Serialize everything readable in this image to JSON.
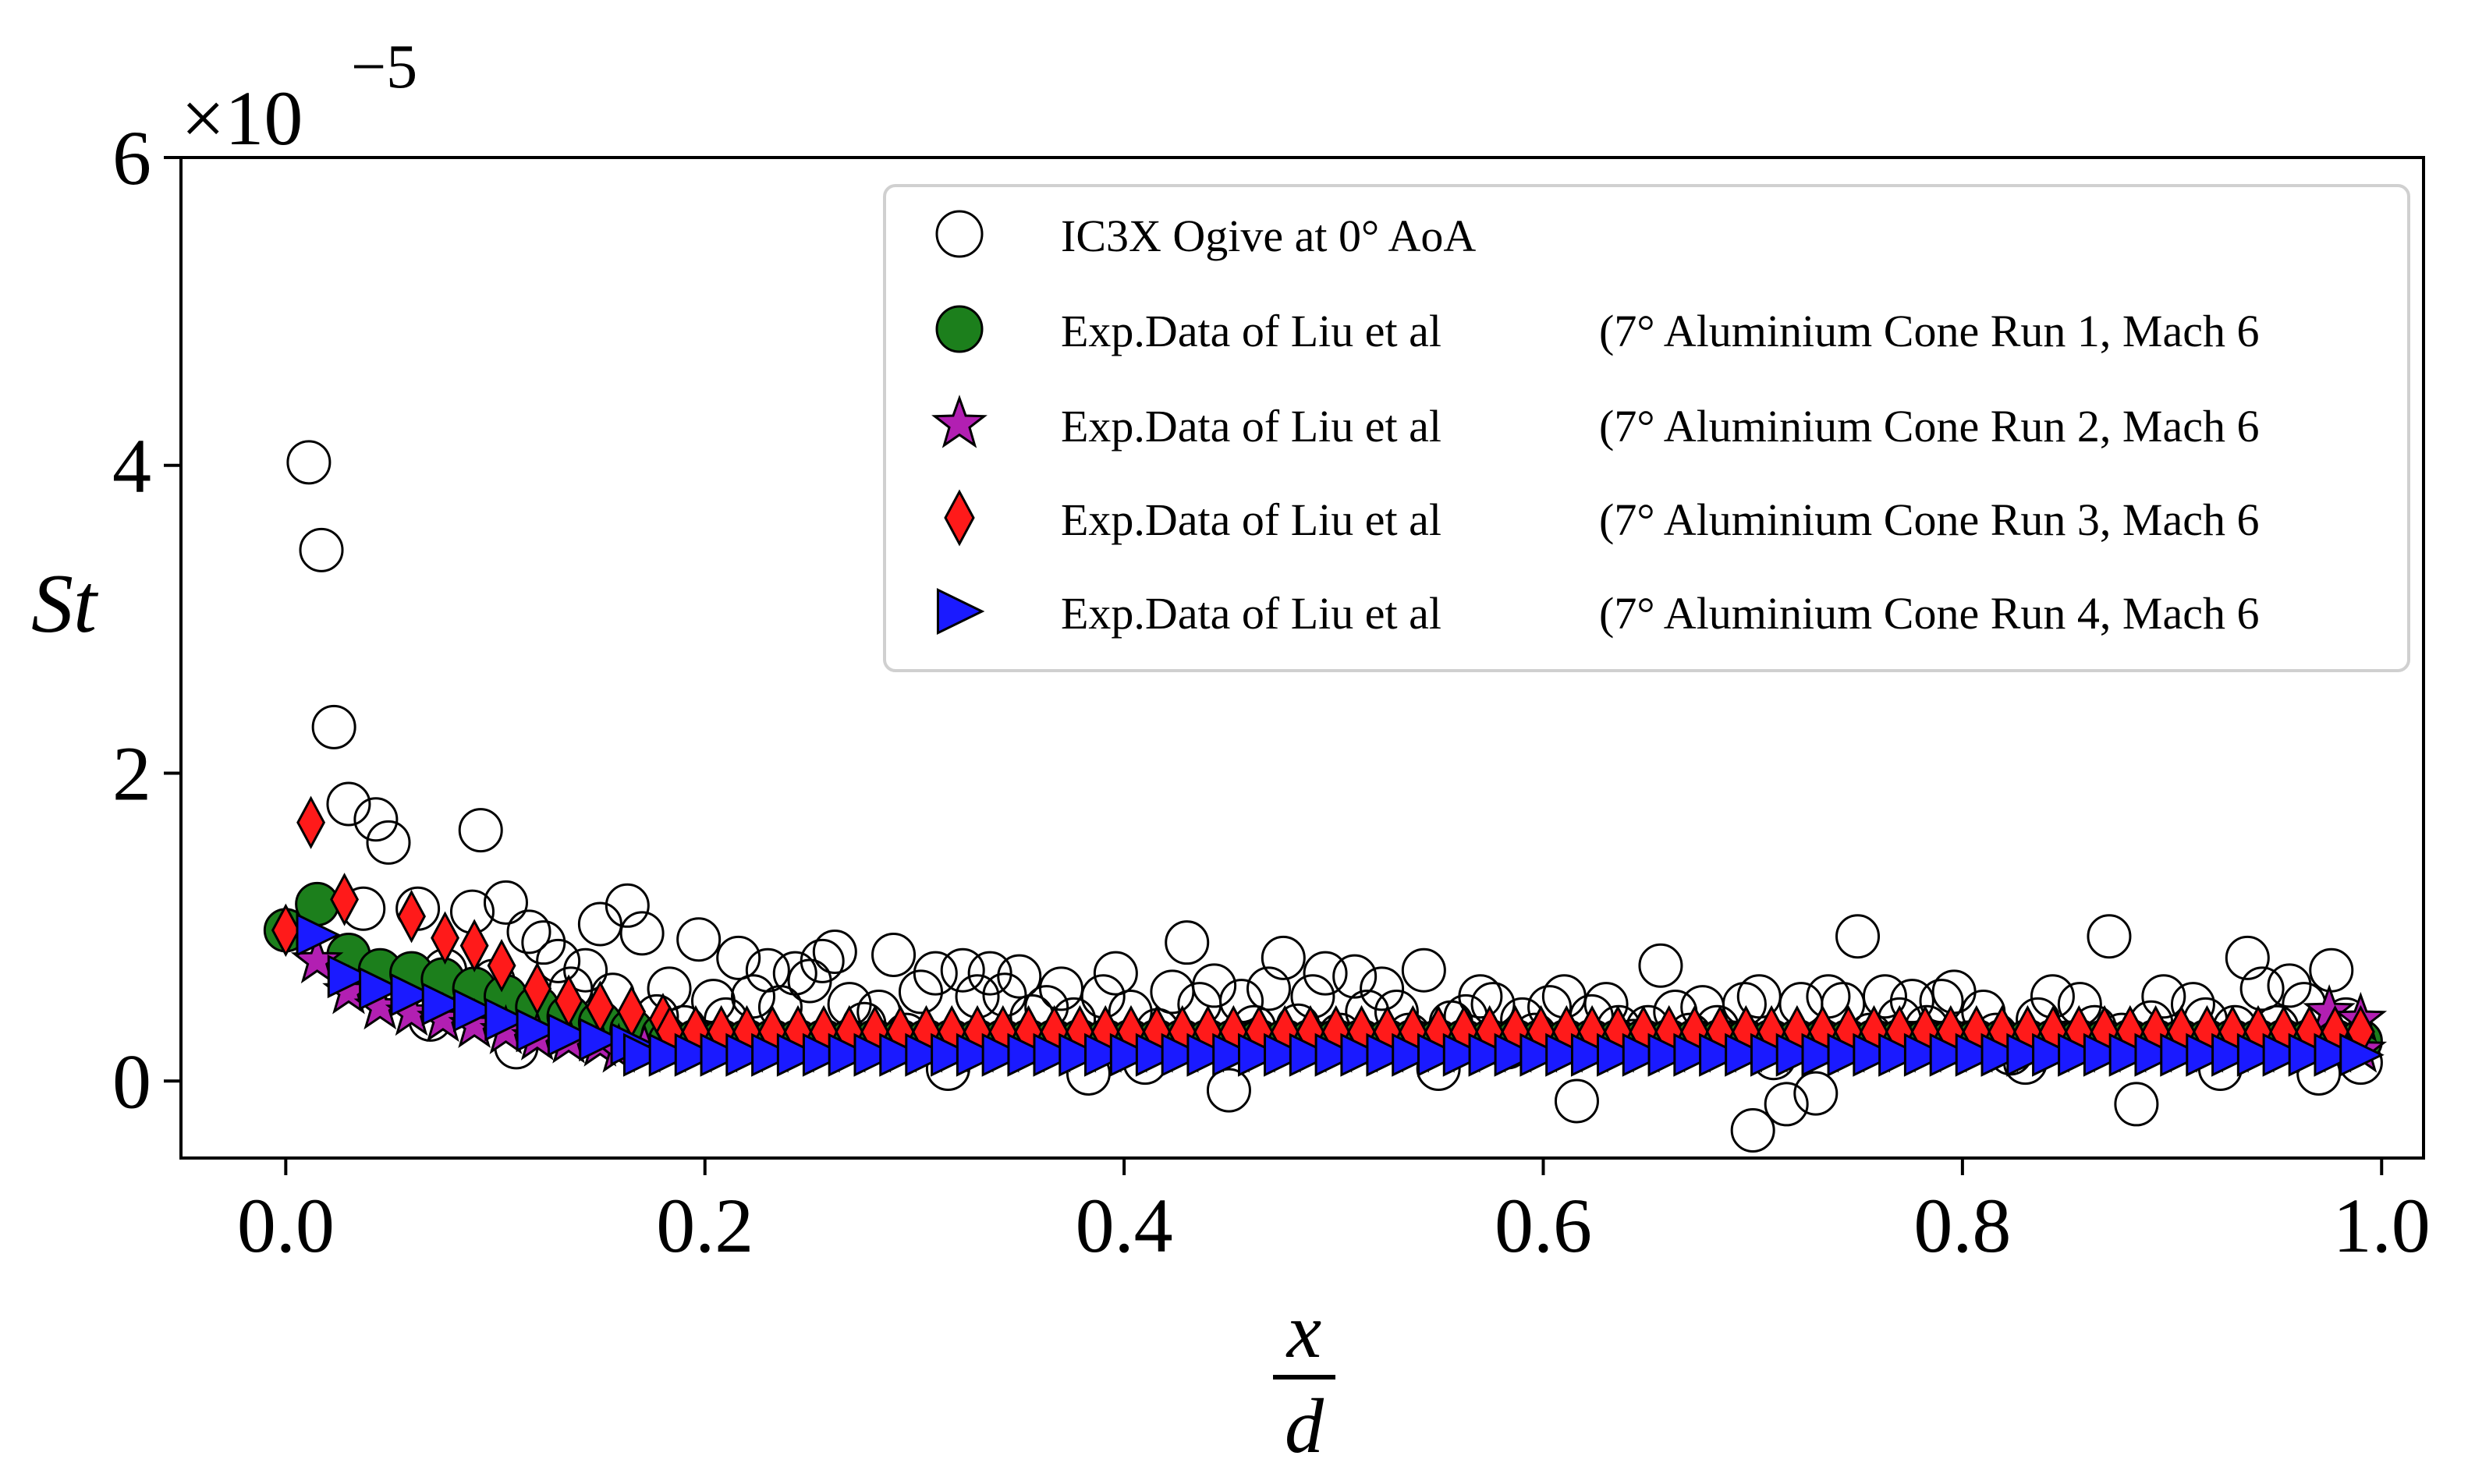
{
  "chart_data": {
    "type": "scatter",
    "title": "",
    "xlabel_numerator": "x",
    "xlabel_denominator": "d",
    "ylabel": "St",
    "y_multiplier": "×10",
    "y_multiplier_exponent": "−5",
    "xlim": [
      -0.05,
      1.02
    ],
    "ylim": [
      -0.5,
      6
    ],
    "x_ticks": [
      0.0,
      0.2,
      0.4,
      0.6,
      0.8,
      1.0
    ],
    "x_tick_labels": [
      "0.0",
      "0.2",
      "0.4",
      "0.6",
      "0.8",
      "1.0"
    ],
    "y_ticks": [
      0,
      2,
      4,
      6
    ],
    "y_tick_labels": [
      "0",
      "2",
      "4",
      "6"
    ],
    "grid": false,
    "legend_position": "top-right",
    "series": [
      {
        "name": "IC3X Ogive at 0° AoA",
        "legend_suffix": "",
        "marker": "circle-open",
        "color": "#ffffff",
        "points": [
          [
            0.011,
            4.02
          ],
          [
            0.017,
            3.45
          ],
          [
            0.023,
            2.3
          ],
          [
            0.03,
            1.8
          ],
          [
            0.037,
            1.12
          ],
          [
            0.043,
            1.7
          ],
          [
            0.049,
            1.55
          ],
          [
            0.056,
            0.62
          ],
          [
            0.063,
            1.12
          ],
          [
            0.069,
            0.4
          ],
          [
            0.076,
            0.72
          ],
          [
            0.083,
            0.55
          ],
          [
            0.089,
            1.1
          ],
          [
            0.093,
            1.63
          ],
          [
            0.099,
            0.65
          ],
          [
            0.105,
            1.16
          ],
          [
            0.11,
            0.22
          ],
          [
            0.116,
            0.97
          ],
          [
            0.123,
            0.9
          ],
          [
            0.13,
            0.78
          ],
          [
            0.136,
            0.6
          ],
          [
            0.143,
            0.72
          ],
          [
            0.15,
            1.02
          ],
          [
            0.156,
            0.56
          ],
          [
            0.163,
            1.14
          ],
          [
            0.17,
            0.96
          ],
          [
            0.177,
            0.42
          ],
          [
            0.183,
            0.6
          ],
          [
            0.19,
            0.35
          ],
          [
            0.197,
            0.92
          ],
          [
            0.204,
            0.52
          ],
          [
            0.21,
            0.4
          ],
          [
            0.216,
            0.8
          ],
          [
            0.223,
            0.55
          ],
          [
            0.23,
            0.72
          ],
          [
            0.236,
            0.48
          ],
          [
            0.243,
            0.7
          ],
          [
            0.25,
            0.65
          ],
          [
            0.256,
            0.78
          ],
          [
            0.262,
            0.84
          ],
          [
            0.269,
            0.5
          ],
          [
            0.276,
            0.37
          ],
          [
            0.283,
            0.45
          ],
          [
            0.29,
            0.82
          ],
          [
            0.296,
            0.3
          ],
          [
            0.303,
            0.58
          ],
          [
            0.31,
            0.7
          ],
          [
            0.316,
            0.08
          ],
          [
            0.323,
            0.72
          ],
          [
            0.33,
            0.55
          ],
          [
            0.336,
            0.7
          ],
          [
            0.343,
            0.56
          ],
          [
            0.35,
            0.68
          ],
          [
            0.356,
            0.42
          ],
          [
            0.363,
            0.48
          ],
          [
            0.37,
            0.6
          ],
          [
            0.376,
            0.4
          ],
          [
            0.383,
            0.05
          ],
          [
            0.39,
            0.55
          ],
          [
            0.396,
            0.7
          ],
          [
            0.403,
            0.45
          ],
          [
            0.41,
            0.12
          ],
          [
            0.416,
            0.33
          ],
          [
            0.423,
            0.58
          ],
          [
            0.43,
            0.9
          ],
          [
            0.436,
            0.5
          ],
          [
            0.443,
            0.62
          ],
          [
            0.45,
            -0.06
          ],
          [
            0.456,
            0.52
          ],
          [
            0.462,
            0.35
          ],
          [
            0.469,
            0.6
          ],
          [
            0.476,
            0.8
          ],
          [
            0.483,
            0.36
          ],
          [
            0.49,
            0.55
          ],
          [
            0.496,
            0.7
          ],
          [
            0.503,
            0.3
          ],
          [
            0.51,
            0.68
          ],
          [
            0.516,
            0.45
          ],
          [
            0.523,
            0.6
          ],
          [
            0.53,
            0.45
          ],
          [
            0.536,
            0.3
          ],
          [
            0.543,
            0.72
          ],
          [
            0.55,
            0.08
          ],
          [
            0.556,
            0.38
          ],
          [
            0.563,
            0.42
          ],
          [
            0.57,
            0.55
          ],
          [
            0.576,
            0.5
          ],
          [
            0.583,
            0.22
          ],
          [
            0.59,
            0.4
          ],
          [
            0.596,
            0.3
          ],
          [
            0.603,
            0.48
          ],
          [
            0.61,
            0.55
          ],
          [
            0.616,
            -0.13
          ],
          [
            0.623,
            0.42
          ],
          [
            0.63,
            0.5
          ],
          [
            0.636,
            0.35
          ],
          [
            0.643,
            0.26
          ],
          [
            0.65,
            0.35
          ],
          [
            0.656,
            0.75
          ],
          [
            0.663,
            0.45
          ],
          [
            0.67,
            0.3
          ],
          [
            0.676,
            0.48
          ],
          [
            0.683,
            0.35
          ],
          [
            0.69,
            0.25
          ],
          [
            0.696,
            0.5
          ],
          [
            0.7,
            -0.32
          ],
          [
            0.703,
            0.55
          ],
          [
            0.71,
            0.15
          ],
          [
            0.716,
            -0.15
          ],
          [
            0.723,
            0.5
          ],
          [
            0.73,
            -0.08
          ],
          [
            0.736,
            0.55
          ],
          [
            0.743,
            0.5
          ],
          [
            0.75,
            0.94
          ],
          [
            0.756,
            0.3
          ],
          [
            0.763,
            0.55
          ],
          [
            0.77,
            0.4
          ],
          [
            0.776,
            0.52
          ],
          [
            0.783,
            0.35
          ],
          [
            0.79,
            0.52
          ],
          [
            0.796,
            0.58
          ],
          [
            0.803,
            0.25
          ],
          [
            0.81,
            0.45
          ],
          [
            0.816,
            0.3
          ],
          [
            0.823,
            0.18
          ],
          [
            0.83,
            0.12
          ],
          [
            0.836,
            0.4
          ],
          [
            0.843,
            0.55
          ],
          [
            0.85,
            0.25
          ],
          [
            0.856,
            0.5
          ],
          [
            0.863,
            0.35
          ],
          [
            0.87,
            0.94
          ],
          [
            0.876,
            0.3
          ],
          [
            0.883,
            -0.15
          ],
          [
            0.89,
            0.38
          ],
          [
            0.896,
            0.55
          ],
          [
            0.903,
            0.25
          ],
          [
            0.91,
            0.5
          ],
          [
            0.916,
            0.4
          ],
          [
            0.923,
            0.08
          ],
          [
            0.93,
            0.35
          ],
          [
            0.936,
            0.8
          ],
          [
            0.943,
            0.6
          ],
          [
            0.95,
            0.35
          ],
          [
            0.956,
            0.62
          ],
          [
            0.963,
            0.5
          ],
          [
            0.97,
            0.05
          ],
          [
            0.976,
            0.72
          ],
          [
            0.983,
            0.4
          ],
          [
            0.99,
            0.12
          ]
        ]
      },
      {
        "name": "Exp.Data of Liu et al",
        "legend_suffix": "(7° Aluminium Cone Run 1, Mach 6",
        "marker": "circle",
        "color": "#1c7f1c",
        "x_start": 0.0,
        "x_end": 0.99,
        "count": 82,
        "points_head": [
          [
            0.0,
            0.98
          ],
          [
            0.015,
            1.15
          ],
          [
            0.03,
            0.82
          ],
          [
            0.045,
            0.72
          ],
          [
            0.06,
            0.7
          ],
          [
            0.075,
            0.66
          ],
          [
            0.09,
            0.6
          ],
          [
            0.105,
            0.55
          ],
          [
            0.12,
            0.48
          ],
          [
            0.135,
            0.42
          ],
          [
            0.15,
            0.38
          ],
          [
            0.165,
            0.33
          ],
          [
            0.18,
            0.3
          ]
        ],
        "tail_value": 0.26
      },
      {
        "name": "Exp.Data of Liu et al",
        "legend_suffix": "(7° Aluminium Cone Run 2, Mach 6",
        "marker": "star",
        "color": "#b21fb2",
        "x_start": 0.0,
        "x_end": 0.99,
        "count": 82,
        "points_head": [
          [
            0.015,
            0.78
          ],
          [
            0.03,
            0.58
          ],
          [
            0.045,
            0.48
          ],
          [
            0.06,
            0.44
          ],
          [
            0.075,
            0.4
          ],
          [
            0.09,
            0.36
          ],
          [
            0.105,
            0.32
          ],
          [
            0.12,
            0.28
          ],
          [
            0.135,
            0.26
          ],
          [
            0.15,
            0.24
          ]
        ],
        "tail_value": 0.2,
        "points_end": [
          [
            0.975,
            0.45
          ],
          [
            0.99,
            0.4
          ]
        ]
      },
      {
        "name": "Exp.Data of Liu et al",
        "legend_suffix": "(7° Aluminium Cone Run 3, Mach 6",
        "marker": "diamond",
        "color": "#ff1a1a",
        "x_start": 0.0,
        "x_end": 0.99,
        "count": 82,
        "points_head": [
          [
            0.0,
            0.98
          ],
          [
            0.012,
            1.68
          ],
          [
            0.028,
            1.18
          ],
          [
            0.06,
            1.07
          ],
          [
            0.076,
            0.93
          ],
          [
            0.09,
            0.88
          ],
          [
            0.103,
            0.75
          ],
          [
            0.12,
            0.6
          ],
          [
            0.135,
            0.52
          ],
          [
            0.15,
            0.48
          ],
          [
            0.165,
            0.45
          ],
          [
            0.18,
            0.4
          ]
        ],
        "tail_value": 0.32
      },
      {
        "name": "Exp.Data of Liu et al",
        "legend_suffix": "(7° Aluminium Cone Run 4, Mach 6",
        "marker": "triangle-right",
        "color": "#1a1aff",
        "x_start": 0.0,
        "x_end": 0.99,
        "count": 82,
        "points_head": [
          [
            0.015,
            0.95
          ],
          [
            0.03,
            0.68
          ],
          [
            0.045,
            0.6
          ],
          [
            0.06,
            0.56
          ],
          [
            0.075,
            0.5
          ],
          [
            0.09,
            0.46
          ],
          [
            0.105,
            0.4
          ],
          [
            0.12,
            0.33
          ],
          [
            0.135,
            0.3
          ],
          [
            0.15,
            0.27
          ],
          [
            0.165,
            0.24
          ]
        ],
        "tail_value": 0.17
      }
    ]
  }
}
